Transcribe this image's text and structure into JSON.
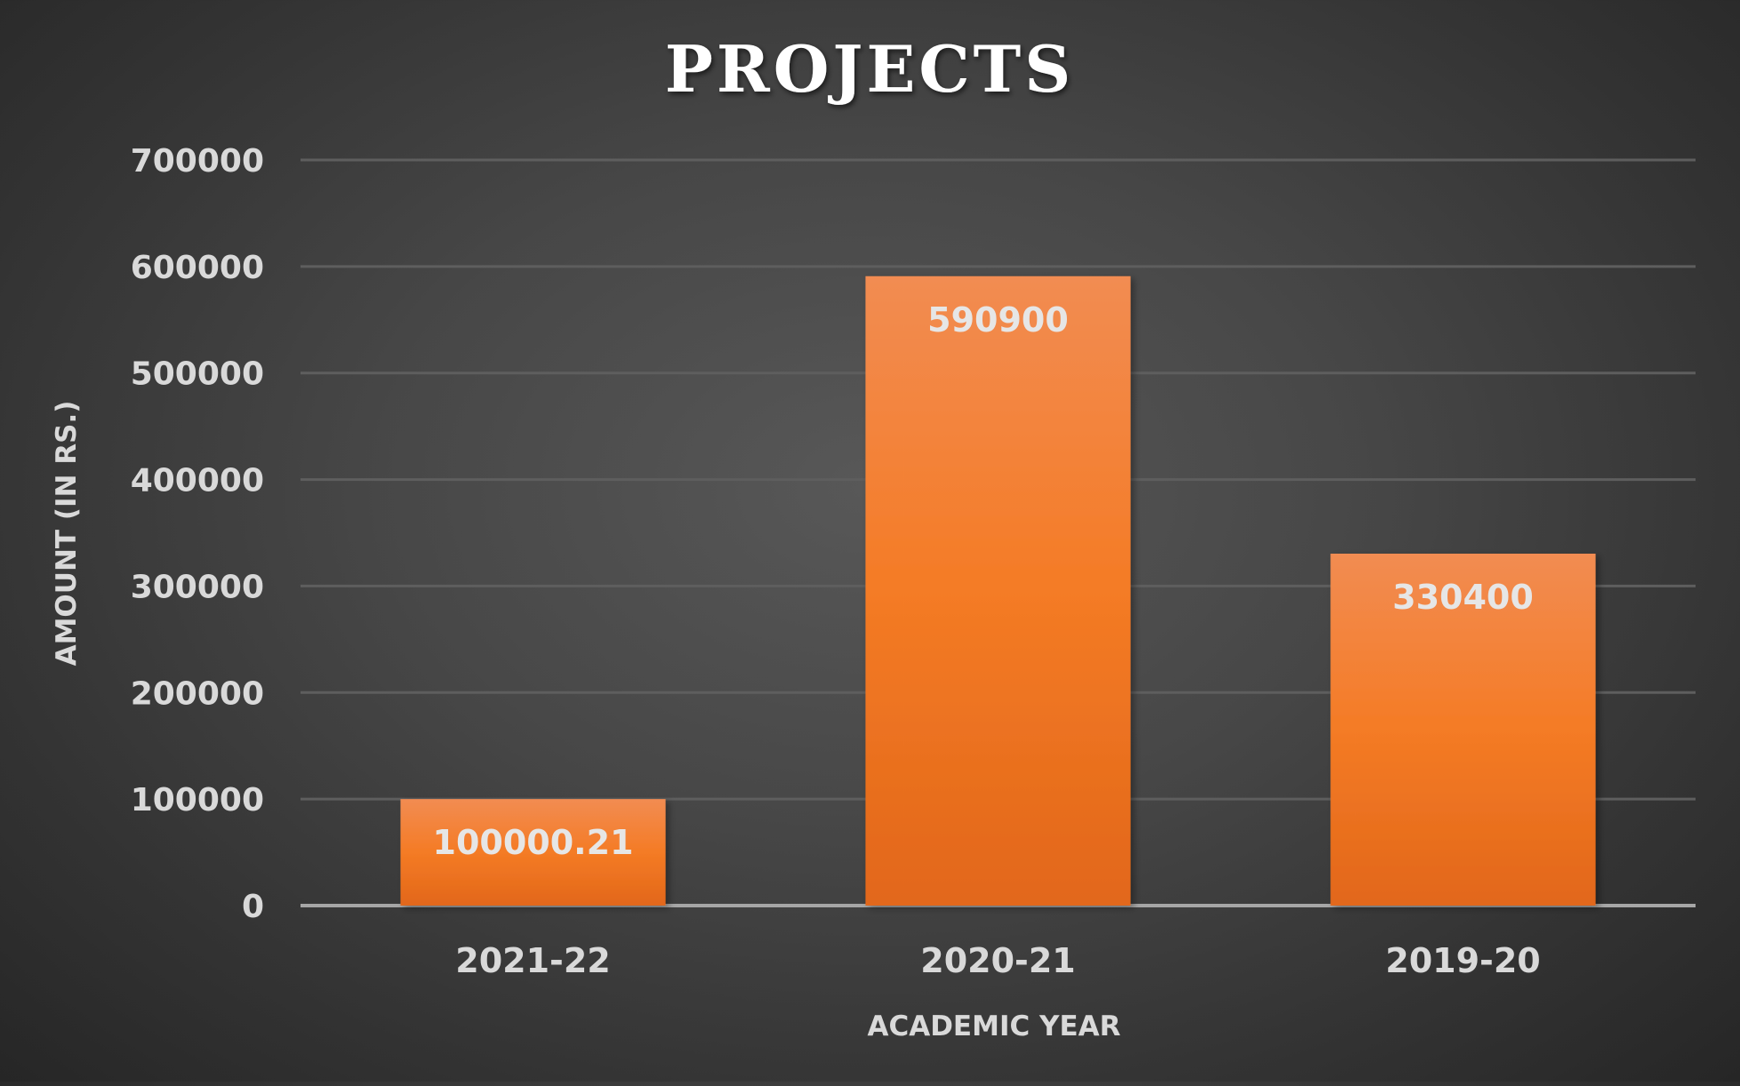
{
  "chart_data": {
    "type": "bar",
    "title": "PROJECTS",
    "xlabel": "ACADEMIC YEAR",
    "ylabel": "AMOUNT (IN RS.)",
    "categories": [
      "2021-22",
      "2020-21",
      "2019-20"
    ],
    "values": [
      100000.21,
      590900,
      330400
    ],
    "data_labels": [
      "100000.21",
      "590900",
      "330400"
    ],
    "ylim": [
      0,
      700000
    ],
    "yticks": [
      0,
      100000,
      200000,
      300000,
      400000,
      500000,
      600000,
      700000
    ],
    "ytick_labels": [
      "0",
      "100000",
      "200000",
      "300000",
      "400000",
      "500000",
      "600000",
      "700000"
    ],
    "grid": true,
    "legend": "none",
    "colors": {
      "bar_top": "#f28c52",
      "bar_mid": "#f47b25",
      "bar_bottom": "#e2671a",
      "text": "#d9d9d9",
      "title": "#ffffff",
      "background": "#404040"
    }
  }
}
